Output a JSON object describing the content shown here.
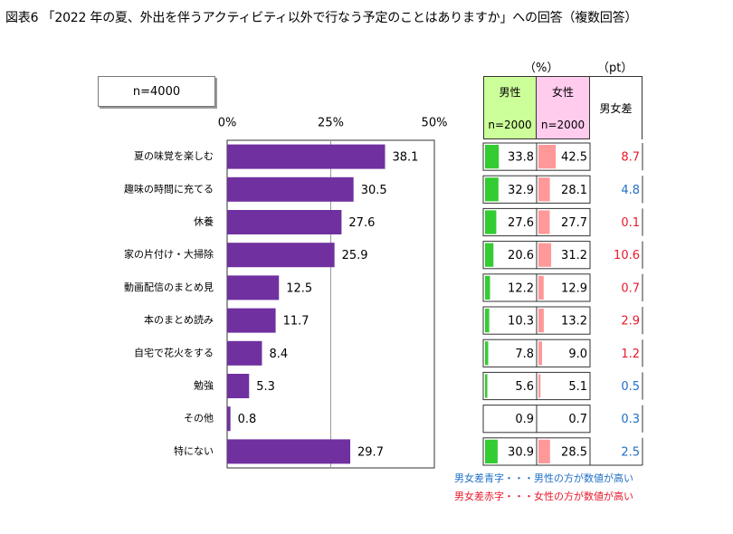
{
  "title": "図表6 「2022 年の夏、外出を伴うアクティビティ以外で行なう予定のことはありますか」への回答（複数回答）",
  "sample_label": "n=4000",
  "colors": {
    "bar": "#7030a0",
    "male_bar": "#33cc33",
    "female_bar": "#ff9999",
    "male_header": "#ccff99",
    "female_header": "#ffccee",
    "diff_blue": "#1f6fc5",
    "diff_red": "#e8192c"
  },
  "table": {
    "unit_pct": "（%）",
    "unit_pt": "（pt）",
    "male_header": "男性",
    "male_n": "n=2000",
    "female_header": "女性",
    "female_n": "n=2000",
    "diff_header": "男女差"
  },
  "notes": {
    "blue": "男女差青字・・・男性の方が数値が高い",
    "red": "男女差赤字・・・女性の方が数値が高い"
  },
  "chart_data": {
    "type": "bar",
    "orientation": "horizontal",
    "xlim": [
      0,
      50
    ],
    "ticks": [
      "0%",
      "25%",
      "50%"
    ],
    "tick_values": [
      0,
      25,
      50
    ],
    "grid": true,
    "categories": [
      "夏の味覚を楽しむ",
      "趣味の時間に充てる",
      "休養",
      "家の片付け・大掃除",
      "動画配信のまとめ見",
      "本のまとめ読み",
      "自宅で花火をする",
      "勉強",
      "その他",
      "特にない"
    ],
    "values": [
      38.1,
      30.5,
      27.6,
      25.9,
      12.5,
      11.7,
      8.4,
      5.3,
      0.8,
      29.7
    ],
    "value_labels": [
      "38.1",
      "30.5",
      "27.6",
      "25.9",
      "12.5",
      "11.7",
      "8.4",
      "5.3",
      "0.8",
      "29.7"
    ],
    "male": [
      "33.8",
      "32.9",
      "27.6",
      "20.6",
      "12.2",
      "10.3",
      "7.8",
      "5.6",
      "0.9",
      "30.9"
    ],
    "female": [
      "42.5",
      "28.1",
      "27.7",
      "31.2",
      "12.9",
      "13.2",
      "9.0",
      "5.1",
      "0.7",
      "28.5"
    ],
    "diff": [
      "8.7",
      "4.8",
      "0.1",
      "10.6",
      "0.7",
      "2.9",
      "1.2",
      "0.5",
      "0.3",
      "2.5"
    ],
    "diff_color": [
      "red",
      "blue",
      "red",
      "red",
      "red",
      "red",
      "red",
      "blue",
      "blue",
      "blue"
    ],
    "male_bar_show": [
      true,
      true,
      true,
      true,
      true,
      true,
      true,
      true,
      false,
      true
    ],
    "female_bar_show": [
      true,
      true,
      true,
      true,
      true,
      true,
      true,
      true,
      false,
      true
    ]
  }
}
